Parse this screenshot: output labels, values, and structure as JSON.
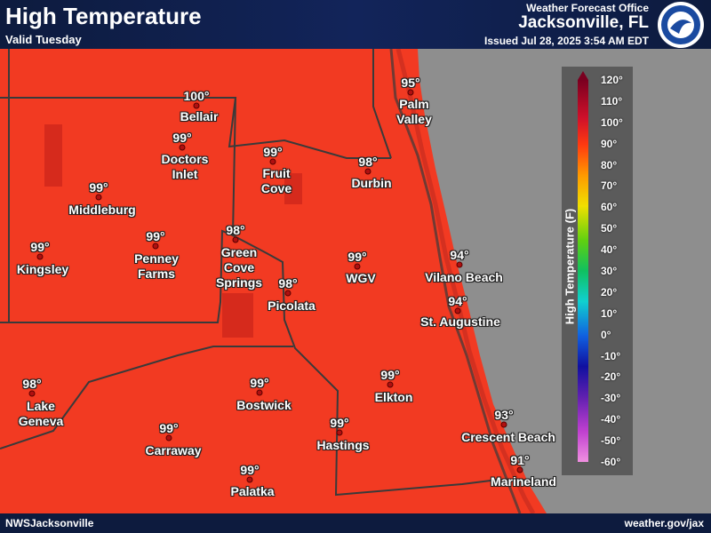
{
  "header": {
    "title": "High Temperature",
    "subtitle": "Valid Tuesday",
    "office": "Weather Forecast Office",
    "office_city": "Jacksonville, FL",
    "issued": "Issued Jul 28, 2025 3:54 AM EDT"
  },
  "footer": {
    "left": "NWSJacksonville",
    "right": "weather.gov/jax"
  },
  "legend": {
    "title": "High Temperature (F)",
    "ticks": [
      "120°",
      "110°",
      "100°",
      "90°",
      "80°",
      "70°",
      "60°",
      "50°",
      "40°",
      "30°",
      "20°",
      "10°",
      "0°",
      "-10°",
      "-20°",
      "-30°",
      "-40°",
      "-50°",
      "-60°"
    ]
  },
  "locations": [
    {
      "temp": "100°",
      "name": "Bellair"
    },
    {
      "temp": "99°",
      "name": "Doctors\nInlet"
    },
    {
      "temp": "99°",
      "name": "Middleburg"
    },
    {
      "temp": "99°",
      "name": "Kingsley"
    },
    {
      "temp": "99°",
      "name": "Penney\nFarms"
    },
    {
      "temp": "98°",
      "name": "Green\nCove\nSprings"
    },
    {
      "temp": "99°",
      "name": "Fruit\nCove"
    },
    {
      "temp": "98°",
      "name": "Durbin"
    },
    {
      "temp": "95°",
      "name": "Palm\nValley"
    },
    {
      "temp": "99°",
      "name": "WGV"
    },
    {
      "temp": "98°",
      "name": "Picolata"
    },
    {
      "temp": "94°",
      "name": "Vilano Beach"
    },
    {
      "temp": "94°",
      "name": "St. Augustine"
    },
    {
      "temp": "98°",
      "name": "Lake\nGeneva"
    },
    {
      "temp": "99°",
      "name": "Bostwick"
    },
    {
      "temp": "99°",
      "name": "Elkton"
    },
    {
      "temp": "99°",
      "name": "Carraway"
    },
    {
      "temp": "99°",
      "name": "Hastings"
    },
    {
      "temp": "99°",
      "name": "Palatka"
    },
    {
      "temp": "93°",
      "name": "Crescent Beach"
    },
    {
      "temp": "91°",
      "name": "Marineland"
    }
  ]
}
